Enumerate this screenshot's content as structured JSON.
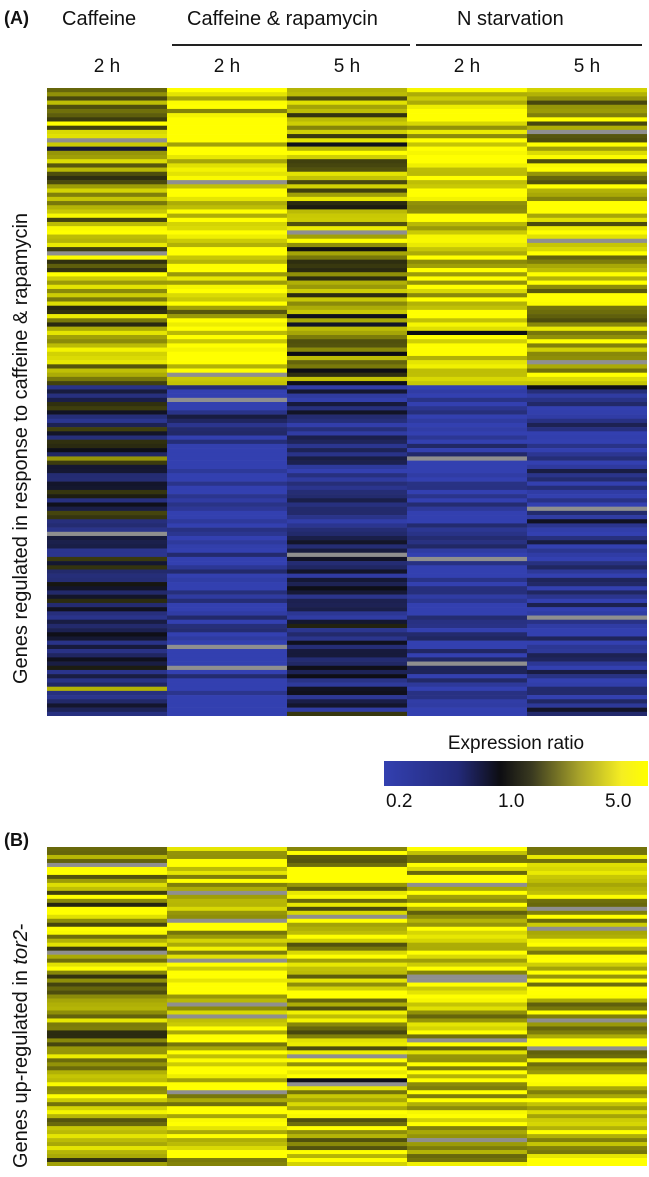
{
  "panel_a": {
    "label": "(A)",
    "groups": [
      {
        "name": "Caffeine"
      },
      {
        "name": "Caffeine & rapamycin"
      },
      {
        "name": "N starvation"
      }
    ],
    "time_points": [
      "2 h",
      "2 h",
      "5 h",
      "2 h",
      "5 h"
    ],
    "ylabel": "Genes regulated in response to caffeine & rapamycin"
  },
  "panel_b": {
    "label": "(B)",
    "ylabel_prefix": "Genes up-regulated in ",
    "ylabel_gene": "tor2",
    "ylabel_suffix": "-"
  },
  "legend": {
    "title": "Expression ratio",
    "ticks": [
      "0.2",
      "1.0",
      "5.0"
    ]
  },
  "colors": {
    "low": "#3340b0",
    "mid": "#0d0d12",
    "high": "#ffff00",
    "missing": "#8f8f8f"
  },
  "chart_data": [
    {
      "type": "heatmap",
      "panel": "A",
      "columns": [
        "Caffeine 2 h",
        "Caffeine & rapamycin 2 h",
        "Caffeine & rapamycin 5 h",
        "N starvation 2 h",
        "N starvation 5 h"
      ],
      "value_scale": "log expression ratio",
      "range": [
        0.2,
        5.0
      ],
      "row_blocks": [
        {
          "genes": "induced",
          "rows_fraction": 0.47,
          "typical_values": [
            2.5,
            5.0,
            2.0,
            4.5,
            3.0
          ]
        },
        {
          "genes": "repressed",
          "rows_fraction": 0.53,
          "typical_values": [
            0.6,
            0.2,
            0.45,
            0.22,
            0.28
          ]
        }
      ]
    },
    {
      "type": "heatmap",
      "panel": "B",
      "columns": [
        "Caffeine 2 h",
        "Caffeine & rapamycin 2 h",
        "Caffeine & rapamycin 5 h",
        "N starvation 2 h",
        "N starvation 5 h"
      ],
      "value_scale": "log expression ratio",
      "range": [
        0.2,
        5.0
      ],
      "typical_values": [
        2.5,
        4.0,
        3.0,
        3.5,
        3.5
      ]
    }
  ]
}
